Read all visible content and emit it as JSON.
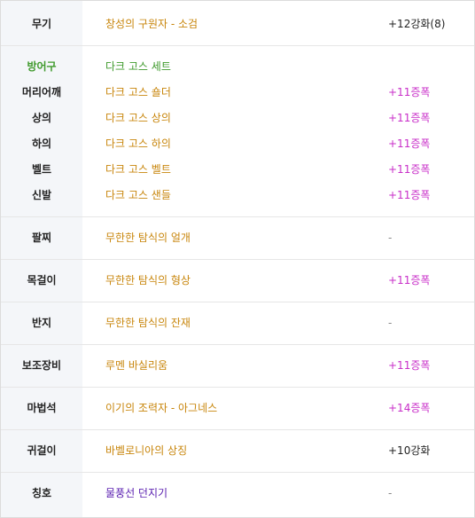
{
  "colors": {
    "item_name": "#c8860c",
    "set_header": "#3f9a2c",
    "title_name": "#5a1fb0",
    "starforce": "#c82ec8",
    "plain": "#222222",
    "sidebar_bg": "#f4f6f9"
  },
  "weapon": {
    "label": "무기",
    "name": "창성의 구원자 - 소검",
    "enhance": "+12강화(8)"
  },
  "armor": {
    "set_label": "방어구",
    "set_name": "다크 고스 세트",
    "rows": [
      {
        "label": "머리어깨",
        "name": "다크 고스 숄더",
        "enhance": "+11증폭"
      },
      {
        "label": "상의",
        "name": "다크 고스 상의",
        "enhance": "+11증폭"
      },
      {
        "label": "하의",
        "name": "다크 고스 하의",
        "enhance": "+11증폭"
      },
      {
        "label": "벨트",
        "name": "다크 고스 벨트",
        "enhance": "+11증폭"
      },
      {
        "label": "신발",
        "name": "다크 고스 샌들",
        "enhance": "+11증폭"
      }
    ]
  },
  "bracelet": {
    "label": "팔찌",
    "name": "무한한 탐식의 얼개",
    "enhance": "-"
  },
  "necklace": {
    "label": "목걸이",
    "name": "무한한 탐식의 형상",
    "enhance": "+11증폭"
  },
  "ring": {
    "label": "반지",
    "name": "무한한 탐식의 잔재",
    "enhance": "-"
  },
  "subweapon": {
    "label": "보조장비",
    "name": "루멘 바실리움",
    "enhance": "+11증폭"
  },
  "magicstone": {
    "label": "마법석",
    "name": "이기의 조력자 - 아그네스",
    "enhance": "+14증폭"
  },
  "earring": {
    "label": "귀걸이",
    "name": "바벨로니아의 상징",
    "enhance": "+10강화"
  },
  "title": {
    "label": "칭호",
    "name": "물풍선 던지기",
    "enhance": "-"
  }
}
